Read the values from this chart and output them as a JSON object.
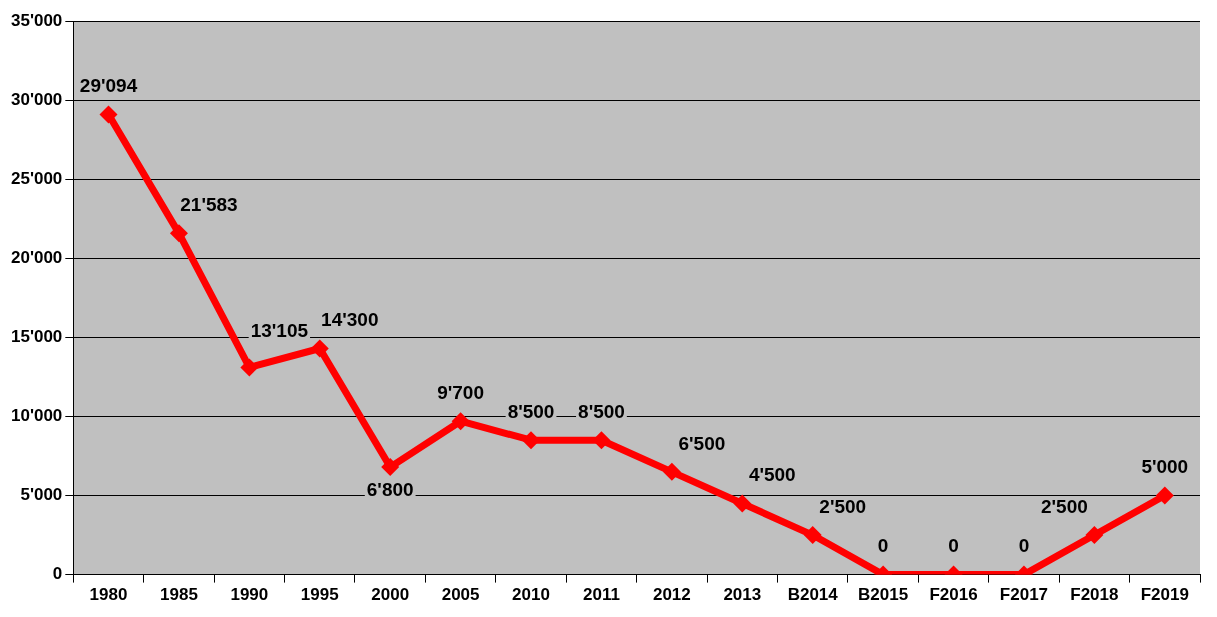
{
  "chart_data": {
    "type": "line",
    "categories": [
      "1980",
      "1985",
      "1990",
      "1995",
      "2000",
      "2005",
      "2010",
      "2011",
      "2012",
      "2013",
      "B2014",
      "B2015",
      "F2016",
      "F2017",
      "F2018",
      "F2019"
    ],
    "series": [
      {
        "color": "#ff0000",
        "values": [
          29094,
          21583,
          13105,
          14300,
          6800,
          9700,
          8500,
          8500,
          6500,
          4500,
          2500,
          0,
          0,
          0,
          2500,
          5000
        ],
        "value_labels": [
          "29'094",
          "21'583",
          "13'105",
          "14'300",
          "6'800",
          "9'700",
          "8'500",
          "8'500",
          "6'500",
          "4'500",
          "2'500",
          "0",
          "0",
          "0",
          "2'500",
          "5'000"
        ]
      }
    ],
    "ylim": [
      0,
      35000
    ],
    "yticks": [
      {
        "value": 0,
        "label": "0"
      },
      {
        "value": 5000,
        "label": "5'000"
      },
      {
        "value": 10000,
        "label": "10'000"
      },
      {
        "value": 15000,
        "label": "15'000"
      },
      {
        "value": 20000,
        "label": "20'000"
      },
      {
        "value": 25000,
        "label": "25'000"
      },
      {
        "value": 30000,
        "label": "30'000"
      },
      {
        "value": 35000,
        "label": "35'000"
      }
    ],
    "grid": "y",
    "legend": false,
    "marker": "diamond",
    "line_style": "solid"
  }
}
